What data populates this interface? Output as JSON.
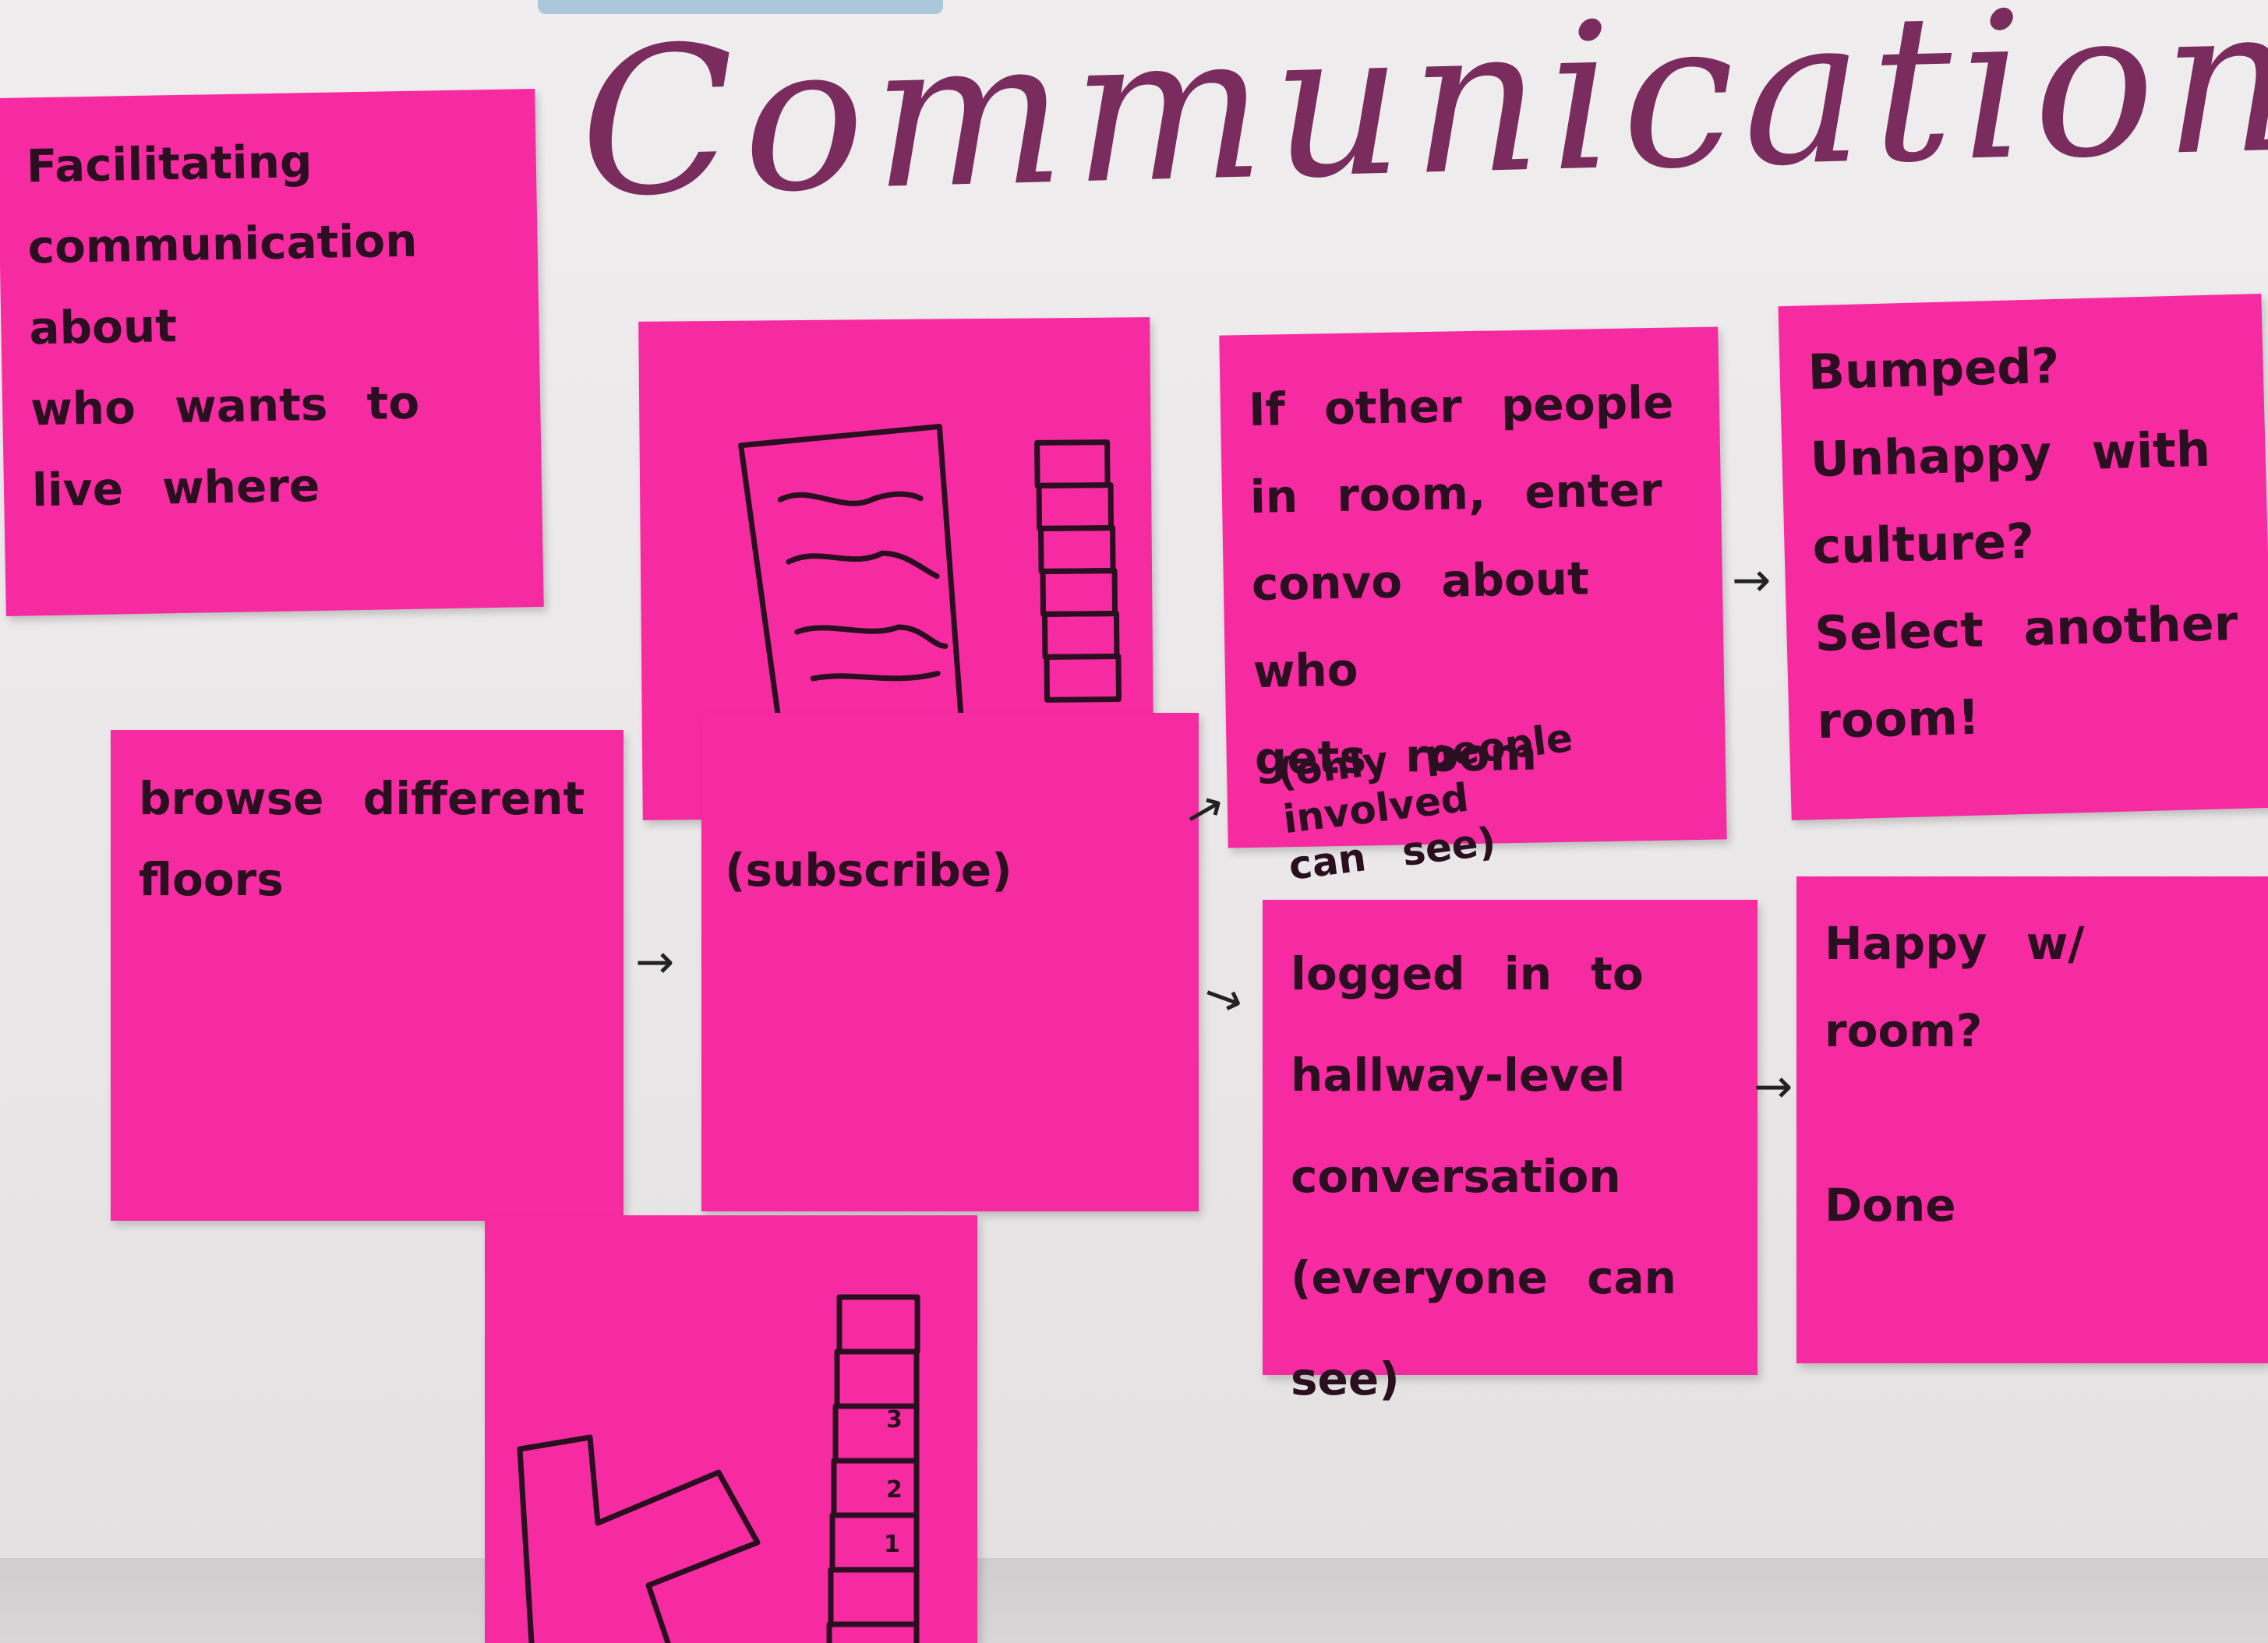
{
  "heading": "Communication",
  "notes": {
    "facilitating": "Facilitating\ncommunication about\nwho wants to\nlive where",
    "browse": "browse different\nfloors",
    "subscribe": "(subscribe)",
    "other_people": "If other people\nin room, enter\nconvo about who\ngets room",
    "other_people_note": "(only people involved\ncan see)",
    "bumped": "Bumped?\nUnhappy with\nculture?\nSelect another\nroom!",
    "logged_in": "logged in to\nhallway-level\nconversation\n(everyone can see)",
    "happy": "Happy w/ room?\n\nDone"
  },
  "sketch_labels": {
    "floor_3": "3",
    "floor_2": "2",
    "floor_1": "1"
  },
  "arrows": [
    "→",
    "→",
    "→",
    "→",
    "→"
  ],
  "colors": {
    "sticky_note": "#f72ba1",
    "ink": "#2a0f20",
    "heading_ink": "#7a2c5e"
  }
}
